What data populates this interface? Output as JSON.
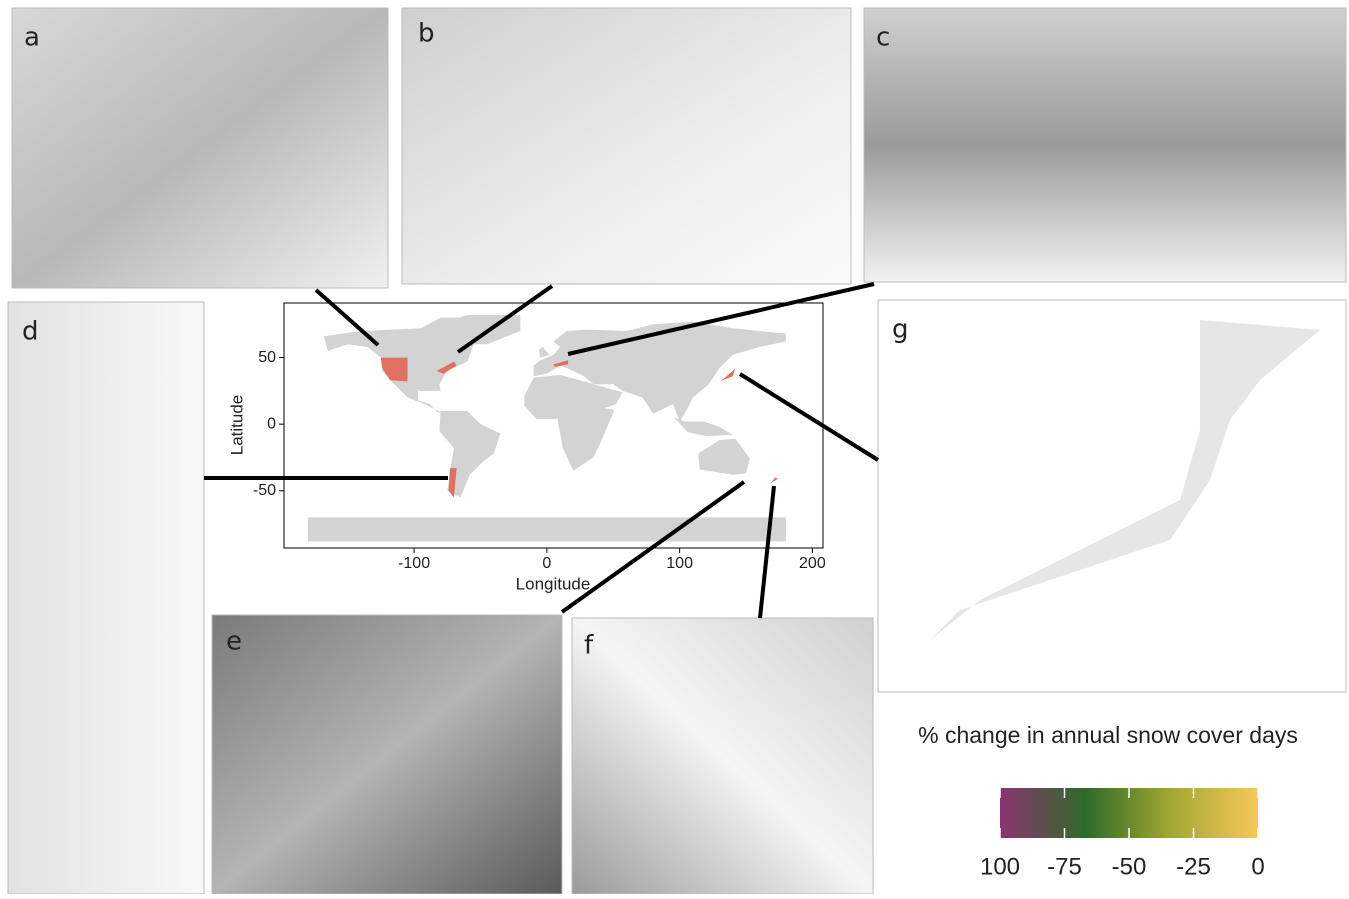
{
  "panels": [
    {
      "label": "a"
    },
    {
      "label": "b"
    },
    {
      "label": "c"
    },
    {
      "label": "d"
    },
    {
      "label": "e"
    },
    {
      "label": "f"
    },
    {
      "label": "g"
    }
  ],
  "chart_data": {
    "type": "map",
    "xlabel": "Longitude",
    "ylabel": "Latitude",
    "xlim": [
      -198,
      208
    ],
    "ylim": [
      -93,
      91
    ],
    "xticks": [
      -100,
      0,
      100,
      200
    ],
    "yticks": [
      50,
      0,
      -50
    ],
    "land_color": "#d3d3d3",
    "region_color": "#e07060"
  },
  "legend": {
    "title": "% change in annual snow cover days",
    "lim": [
      -100,
      0
    ],
    "ticks": [
      {
        "value": -100,
        "label": "100"
      },
      -75,
      -50,
      -25,
      0
    ],
    "colors": [
      "#8b3470",
      "#2e6b2a",
      "#a4a832",
      "#f6c85a"
    ]
  }
}
